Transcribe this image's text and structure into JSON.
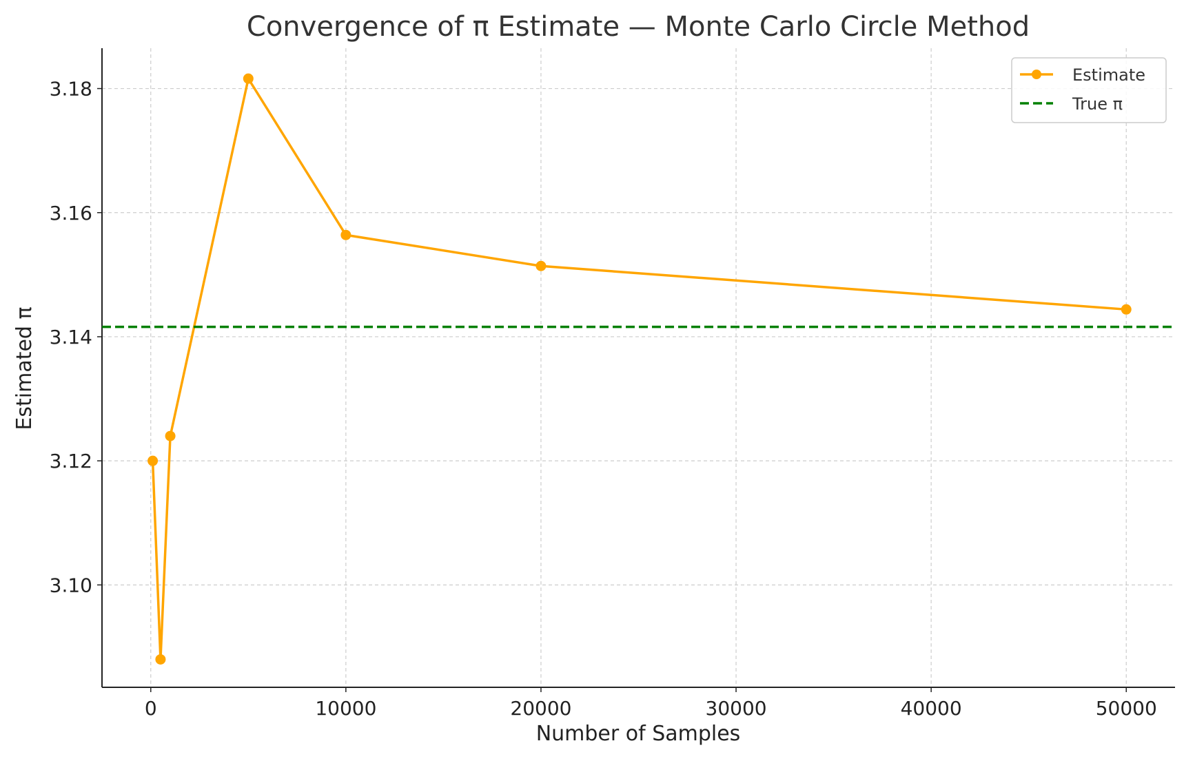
{
  "chart_data": {
    "type": "line",
    "title": "Convergence of π Estimate — Monte Carlo Circle Method",
    "xlabel": "Number of Samples",
    "ylabel": "Estimated π",
    "xlim": [
      -2500,
      52500
    ],
    "ylim": [
      3.0835,
      3.1865
    ],
    "xticks": [
      0,
      10000,
      20000,
      30000,
      40000,
      50000
    ],
    "xtick_labels": [
      "0",
      "10000",
      "20000",
      "30000",
      "40000",
      "50000"
    ],
    "yticks": [
      3.1,
      3.12,
      3.14,
      3.16,
      3.18
    ],
    "ytick_labels": [
      "3.10",
      "3.12",
      "3.14",
      "3.16",
      "3.18"
    ],
    "grid": true,
    "legend_position": "top-right",
    "series": [
      {
        "name": "Estimate",
        "color": "#FFA500",
        "style": "solid",
        "marker": "circle",
        "x": [
          100,
          500,
          1000,
          5000,
          10000,
          20000,
          50000
        ],
        "y": [
          3.12,
          3.088,
          3.124,
          3.1816,
          3.1564,
          3.1514,
          3.1444
        ]
      },
      {
        "name": "True π",
        "color": "#008000",
        "style": "dashed",
        "type": "hline",
        "y": 3.14159
      }
    ]
  }
}
